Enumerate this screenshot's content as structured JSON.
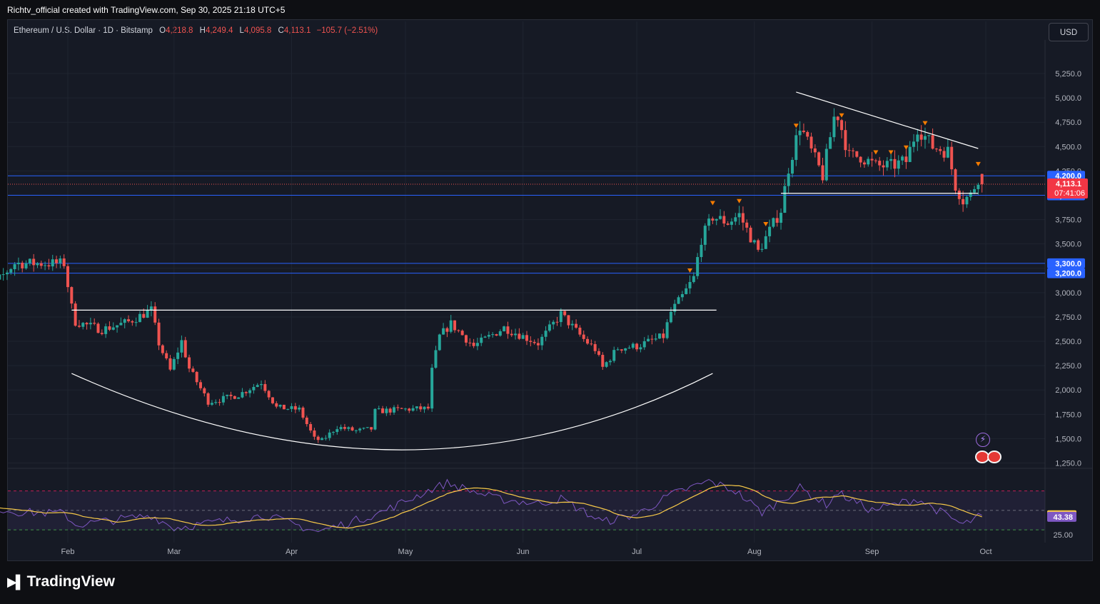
{
  "header": {
    "attribution": "Richtv_official created with TradingView.com, Sep 30, 2025 21:18 UTC+5"
  },
  "symbol_bar": {
    "name": "Ethereum / U.S. Dollar · 1D · Bitstamp",
    "open_label": "O",
    "open": "4,218.8",
    "high_label": "H",
    "high": "4,249.4",
    "low_label": "L",
    "low": "4,095.8",
    "close_label": "C",
    "close": "4,113.1",
    "change": "−105.7 (−2.51%)"
  },
  "currency_button": "USD",
  "branding": {
    "name": "TradingView"
  },
  "colors": {
    "up": "#26a69a",
    "down": "#ef5350",
    "level_line": "#2962ff",
    "trendline": "#ffffff",
    "rsi_line": "#7e57c2",
    "rsi_ma": "#f7c948",
    "marker": "#f57c00",
    "price_line": "#ef5350"
  },
  "chart_data": [
    {
      "type": "candlestick",
      "title": "Ethereum / U.S. Dollar · 1D · Bitstamp",
      "currency": "USD",
      "y_ticks": [
        "5,250.0",
        "5,000.0",
        "4,750.0",
        "4,500.0",
        "4,250.0",
        "3,750.0",
        "3,500.0",
        "3,250.0",
        "3,000.0",
        "2,750.0",
        "2,500.0",
        "2,250.0",
        "2,000.0",
        "1,750.0",
        "1,500.0",
        "1,250.0"
      ],
      "x_ticks": [
        {
          "label": "Feb",
          "date": "2025-02-01"
        },
        {
          "label": "Mar",
          "date": "2025-03-01"
        },
        {
          "label": "Apr",
          "date": "2025-04-01"
        },
        {
          "label": "May",
          "date": "2025-05-01"
        },
        {
          "label": "Jun",
          "date": "2025-06-01"
        },
        {
          "label": "Jul",
          "date": "2025-07-01"
        },
        {
          "label": "Aug",
          "date": "2025-08-01"
        },
        {
          "label": "Sep",
          "date": "2025-09-01"
        },
        {
          "label": "Oct",
          "date": "2025-10-01"
        }
      ],
      "price_levels": [
        {
          "label": "4,200.0",
          "value": 4200
        },
        {
          "label": "4,000.0",
          "value": 4000
        },
        {
          "label": "3,300.0",
          "value": 3300
        },
        {
          "label": "3,200.0",
          "value": 3200
        }
      ],
      "last_price": {
        "label": "4,113.1",
        "value": 4113.1,
        "countdown": "07:41:06"
      },
      "anchor_points": [
        [
          "2025-01-06",
          3650
        ],
        [
          "2025-01-10",
          3250
        ],
        [
          "2025-01-13",
          3100
        ],
        [
          "2025-01-18",
          3300
        ],
        [
          "2025-01-24",
          3300
        ],
        [
          "2025-01-31",
          3300
        ],
        [
          "2025-02-02",
          2850
        ],
        [
          "2025-02-03",
          2700
        ],
        [
          "2025-02-10",
          2620
        ],
        [
          "2025-02-17",
          2700
        ],
        [
          "2025-02-23",
          2820
        ],
        [
          "2025-02-25",
          2480
        ],
        [
          "2025-02-28",
          2200
        ],
        [
          "2025-03-03",
          2500
        ],
        [
          "2025-03-05",
          2220
        ],
        [
          "2025-03-10",
          1880
        ],
        [
          "2025-03-13",
          1900
        ],
        [
          "2025-03-18",
          1950
        ],
        [
          "2025-03-24",
          2080
        ],
        [
          "2025-03-28",
          1820
        ],
        [
          "2025-04-03",
          1800
        ],
        [
          "2025-04-07",
          1500
        ],
        [
          "2025-04-09",
          1480
        ],
        [
          "2025-04-13",
          1620
        ],
        [
          "2025-04-18",
          1580
        ],
        [
          "2025-04-22",
          1600
        ],
        [
          "2025-04-23",
          1780
        ],
        [
          "2025-04-30",
          1800
        ],
        [
          "2025-05-07",
          1810
        ],
        [
          "2025-05-08",
          2200
        ],
        [
          "2025-05-10",
          2550
        ],
        [
          "2025-05-13",
          2680
        ],
        [
          "2025-05-19",
          2450
        ],
        [
          "2025-05-27",
          2640
        ],
        [
          "2025-06-05",
          2480
        ],
        [
          "2025-06-11",
          2780
        ],
        [
          "2025-06-17",
          2520
        ],
        [
          "2025-06-20",
          2420
        ],
        [
          "2025-06-22",
          2230
        ],
        [
          "2025-06-26",
          2430
        ],
        [
          "2025-07-01",
          2450
        ],
        [
          "2025-07-08",
          2550
        ],
        [
          "2025-07-10",
          2800
        ],
        [
          "2025-07-13",
          2960
        ],
        [
          "2025-07-16",
          3150
        ],
        [
          "2025-07-18",
          3550
        ],
        [
          "2025-07-21",
          3780
        ],
        [
          "2025-07-25",
          3720
        ],
        [
          "2025-07-28",
          3800
        ],
        [
          "2025-08-02",
          3420
        ],
        [
          "2025-08-08",
          3850
        ],
        [
          "2025-08-10",
          4280
        ],
        [
          "2025-08-13",
          4720
        ],
        [
          "2025-08-16",
          4450
        ],
        [
          "2025-08-19",
          4200
        ],
        [
          "2025-08-22",
          4800
        ],
        [
          "2025-08-23",
          4820
        ],
        [
          "2025-08-26",
          4400
        ],
        [
          "2025-08-29",
          4400
        ],
        [
          "2025-09-02",
          4300
        ],
        [
          "2025-09-06",
          4300
        ],
        [
          "2025-09-10",
          4350
        ],
        [
          "2025-09-13",
          4700
        ],
        [
          "2025-09-17",
          4500
        ],
        [
          "2025-09-21",
          4450
        ],
        [
          "2025-09-23",
          4100
        ],
        [
          "2025-09-25",
          3950
        ],
        [
          "2025-09-27",
          4000
        ],
        [
          "2025-09-29",
          4180
        ],
        [
          "2025-09-30",
          4113.1
        ]
      ],
      "drawings": {
        "descending_resistance": [
          [
            "2025-08-12",
            5060
          ],
          [
            "2025-09-29",
            4480
          ]
        ],
        "support_4000": [
          [
            "2025-08-08",
            4020
          ],
          [
            "2025-09-29",
            4020
          ]
        ],
        "neckline": [
          [
            "2025-02-02",
            2820
          ],
          [
            "2025-07-22",
            2820
          ]
        ],
        "rounding_bottom": [
          [
            "2025-02-02",
            2170
          ],
          [
            "2025-04-30",
            1385
          ],
          [
            "2025-07-21",
            2170
          ]
        ]
      },
      "signal_markers": [
        "2025-07-15",
        "2025-07-21",
        "2025-07-28",
        "2025-08-04",
        "2025-08-12",
        "2025-08-24",
        "2025-09-02",
        "2025-09-06",
        "2025-09-10",
        "2025-09-15",
        "2025-09-29"
      ]
    },
    {
      "type": "line",
      "indicator": "RSI",
      "y_ticks": [
        "25.00"
      ],
      "rsi_value": "44.97",
      "rsi_ma_value": "43.38",
      "bands": {
        "upper": 70,
        "middle": 50,
        "lower": 30
      },
      "anchor_points": [
        [
          "2025-01-06",
          55
        ],
        [
          "2025-01-20",
          48
        ],
        [
          "2025-01-31",
          47
        ],
        [
          "2025-02-03",
          35
        ],
        [
          "2025-02-23",
          45
        ],
        [
          "2025-03-01",
          32
        ],
        [
          "2025-03-25",
          45
        ],
        [
          "2025-04-08",
          28
        ],
        [
          "2025-04-24",
          47
        ],
        [
          "2025-05-08",
          72
        ],
        [
          "2025-05-12",
          78
        ],
        [
          "2025-05-25",
          62
        ],
        [
          "2025-06-05",
          57
        ],
        [
          "2025-06-11",
          62
        ],
        [
          "2025-06-22",
          38
        ],
        [
          "2025-07-01",
          46
        ],
        [
          "2025-07-10",
          66
        ],
        [
          "2025-07-20",
          80
        ],
        [
          "2025-07-27",
          70
        ],
        [
          "2025-08-03",
          48
        ],
        [
          "2025-08-13",
          73
        ],
        [
          "2025-08-20",
          56
        ],
        [
          "2025-08-23",
          68
        ],
        [
          "2025-09-01",
          50
        ],
        [
          "2025-09-13",
          62
        ],
        [
          "2025-09-25",
          35
        ],
        [
          "2025-09-30",
          44.97
        ]
      ]
    }
  ]
}
